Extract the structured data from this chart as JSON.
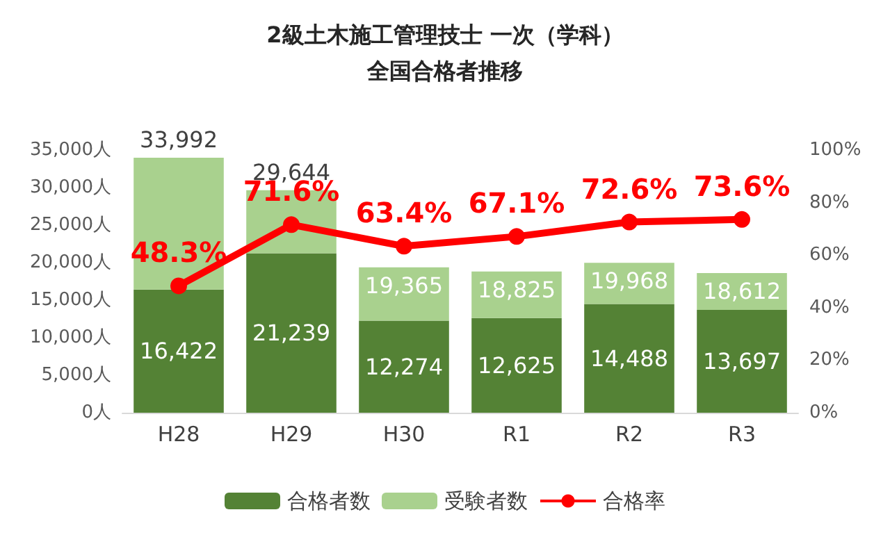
{
  "chart_data": {
    "type": "bar",
    "title": "2級土木施工管理技士 一次（学科）",
    "subtitle": "全国合格者推移",
    "categories": [
      "H28",
      "H29",
      "H30",
      "R1",
      "R2",
      "R3"
    ],
    "series": [
      {
        "name": "合格者数",
        "color": "#548235",
        "values": [
          16422,
          21239,
          12274,
          12625,
          14488,
          13697
        ],
        "value_labels": [
          "16,422",
          "21,239",
          "12,274",
          "12,625",
          "14,488",
          "13,697"
        ]
      },
      {
        "name": "受験者数",
        "color": "#a9d18e",
        "values": [
          17570,
          8405,
          7091,
          6200,
          5480,
          4915
        ]
      },
      {
        "name": "合格率",
        "type": "line",
        "axis": "y2",
        "color": "#ff0000",
        "values": [
          48.3,
          71.6,
          63.4,
          67.1,
          72.6,
          73.6
        ],
        "value_labels": [
          "48.3%",
          "71.6%",
          "63.4%",
          "67.1%",
          "72.6%",
          "73.6%"
        ]
      }
    ],
    "stacked": true,
    "totals": [
      "33,992",
      "29,644",
      "19,365",
      "18,825",
      "19,968",
      "18,612"
    ],
    "ylim": [
      0,
      35000
    ],
    "yticks": [
      {
        "value": 0,
        "label": "0人"
      },
      {
        "value": 5000,
        "label": "5,000人"
      },
      {
        "value": 10000,
        "label": "10,000人"
      },
      {
        "value": 15000,
        "label": "15,000人"
      },
      {
        "value": 20000,
        "label": "20,000人"
      },
      {
        "value": 25000,
        "label": "25,000人"
      },
      {
        "value": 30000,
        "label": "30,000人"
      },
      {
        "value": 35000,
        "label": "35,000人"
      }
    ],
    "y2lim": [
      0,
      100
    ],
    "y2ticks": [
      {
        "value": 0,
        "label": "0%"
      },
      {
        "value": 20,
        "label": "20%"
      },
      {
        "value": 40,
        "label": "40%"
      },
      {
        "value": 60,
        "label": "60%"
      },
      {
        "value": 80,
        "label": "80%"
      },
      {
        "value": 100,
        "label": "100%"
      }
    ],
    "grid": false,
    "legend": "bottom",
    "marker": "circle",
    "line_style": "solid"
  }
}
